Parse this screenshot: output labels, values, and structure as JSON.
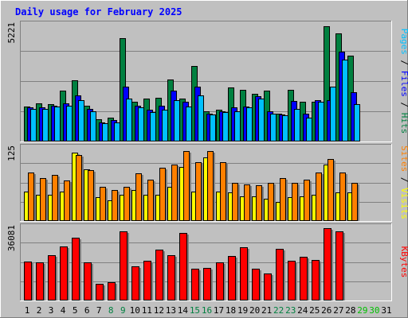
{
  "title": "Daily usage for February 2025",
  "colors": {
    "frame_bg": "#c0c0c0",
    "plot_bg": "#c0c0c0",
    "title": "#0000ff",
    "hits": "#008040",
    "files": "#0000ff",
    "pages": "#00c0ff",
    "visits": "#ffff00",
    "sites": "#ff8000",
    "kbytes": "#ff0000",
    "weekday_label": "#000000",
    "weekend_label": "#008040",
    "future_label": "#00c000"
  },
  "chart_data": [
    {
      "type": "bar",
      "name": "hits-files-pages",
      "categories": [
        "1",
        "2",
        "3",
        "4",
        "5",
        "6",
        "7",
        "8",
        "9",
        "10",
        "11",
        "12",
        "13",
        "14",
        "15",
        "16",
        "17",
        "18",
        "19",
        "20",
        "21",
        "22",
        "23",
        "24",
        "25",
        "26",
        "27",
        "28",
        "29",
        "30",
        "31"
      ],
      "y_tick_label": "5221",
      "ylim": [
        0,
        5221
      ],
      "axis_label": {
        "pages": "Pages",
        "files": "Files",
        "hits": "Hits",
        "sep": " / "
      },
      "series": [
        {
          "key": "hits",
          "values": [
            1550,
            1700,
            1650,
            2250,
            2700,
            1600,
            1000,
            1050,
            4600,
            1750,
            1900,
            1950,
            2750,
            1900,
            3350,
            1350,
            1400,
            2400,
            2300,
            2100,
            2250,
            1250,
            2300,
            1750,
            1750,
            5100,
            4800,
            3800,
            null,
            null,
            null
          ]
        },
        {
          "key": "files",
          "values": [
            1500,
            1500,
            1600,
            1700,
            2050,
            1450,
            850,
            950,
            2450,
            1600,
            1400,
            1600,
            2250,
            1750,
            2450,
            1250,
            1350,
            1500,
            1550,
            2000,
            1350,
            1200,
            1800,
            1250,
            1850,
            1850,
            4000,
            2200,
            null,
            null,
            null
          ]
        },
        {
          "key": "pages",
          "values": [
            1450,
            1450,
            1550,
            1600,
            1850,
            1350,
            800,
            850,
            1900,
            1500,
            1300,
            1400,
            1850,
            1550,
            2050,
            1200,
            1300,
            1350,
            1500,
            1900,
            1250,
            1150,
            1450,
            1050,
            1750,
            2450,
            3650,
            1650,
            null,
            null,
            null
          ]
        }
      ]
    },
    {
      "type": "bar",
      "name": "visits-sites",
      "categories": [
        "1",
        "2",
        "3",
        "4",
        "5",
        "6",
        "7",
        "8",
        "9",
        "10",
        "11",
        "12",
        "13",
        "14",
        "15",
        "16",
        "17",
        "18",
        "19",
        "20",
        "21",
        "22",
        "23",
        "24",
        "25",
        "26",
        "27",
        "28",
        "29",
        "30",
        "31"
      ],
      "y_tick_label": "125",
      "ylim": [
        0,
        125
      ],
      "axis_label": {
        "sites": "Sites",
        "visits": "Visits",
        "sep": " / "
      },
      "series": [
        {
          "key": "visits",
          "values": [
            50,
            45,
            45,
            50,
            115,
            88,
            40,
            35,
            45,
            52,
            45,
            45,
            58,
            92,
            50,
            108,
            50,
            48,
            42,
            42,
            38,
            32,
            40,
            42,
            45,
            95,
            48,
            48,
            null,
            null,
            null
          ]
        },
        {
          "key": "sites",
          "values": [
            82,
            72,
            78,
            68,
            112,
            86,
            58,
            52,
            58,
            80,
            70,
            90,
            95,
            118,
            100,
            118,
            100,
            65,
            62,
            60,
            65,
            72,
            65,
            70,
            82,
            105,
            82,
            65,
            null,
            null,
            null
          ]
        }
      ]
    },
    {
      "type": "bar",
      "name": "kbytes",
      "categories": [
        "1",
        "2",
        "3",
        "4",
        "5",
        "6",
        "7",
        "8",
        "9",
        "10",
        "11",
        "12",
        "13",
        "14",
        "15",
        "16",
        "17",
        "18",
        "19",
        "20",
        "21",
        "22",
        "23",
        "24",
        "25",
        "26",
        "27",
        "28",
        "29",
        "30",
        "31"
      ],
      "y_tick_label": "36081",
      "ylim": [
        0,
        36081
      ],
      "axis_label": {
        "kbytes": "KBytes"
      },
      "series": [
        {
          "key": "kbytes",
          "values": [
            19000,
            18800,
            22000,
            26500,
            30500,
            18500,
            8000,
            9000,
            33800,
            16800,
            19500,
            24800,
            22200,
            33000,
            15500,
            16000,
            18500,
            21800,
            26000,
            15500,
            13300,
            25200,
            19500,
            21500,
            19800,
            35200,
            33800,
            null,
            null,
            null,
            null
          ]
        }
      ]
    }
  ],
  "day_label_class": [
    "wd",
    "wd",
    "wd",
    "wd",
    "wd",
    "wd",
    "wd",
    "we",
    "we",
    "wd",
    "wd",
    "wd",
    "wd",
    "wd",
    "we",
    "we",
    "wd",
    "wd",
    "wd",
    "wd",
    "wd",
    "we",
    "we",
    "wd",
    "wd",
    "wd",
    "wd",
    "wd",
    "ft",
    "ft",
    "wd"
  ]
}
